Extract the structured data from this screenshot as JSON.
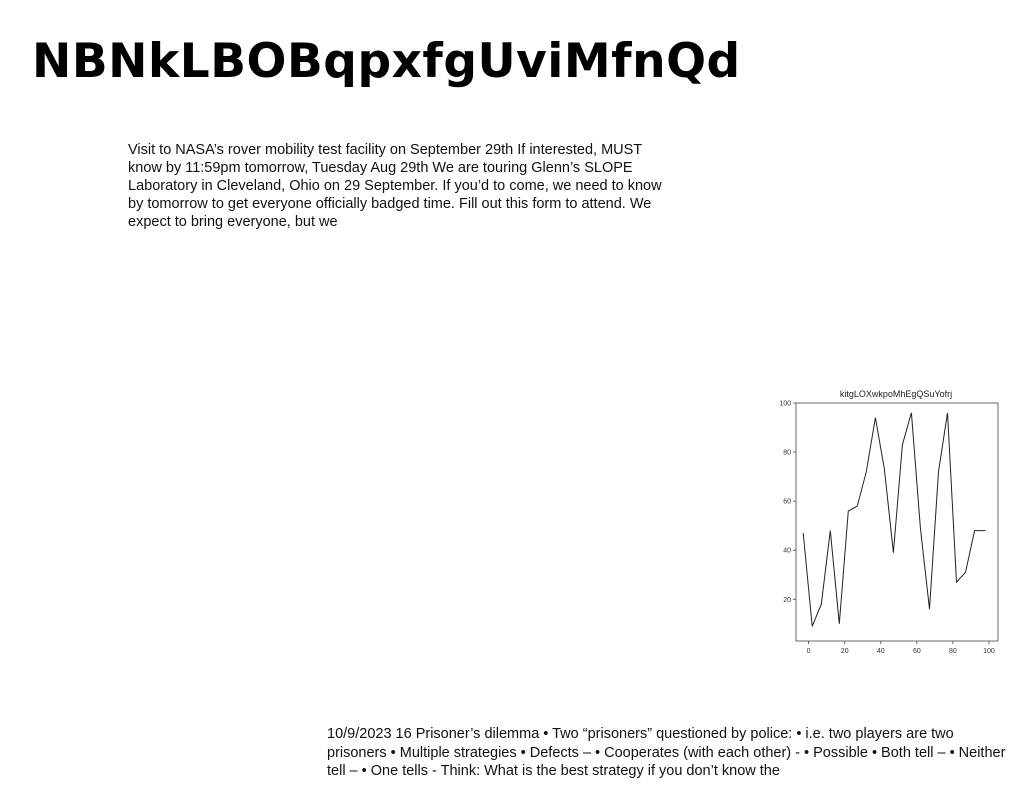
{
  "page": {
    "title": "NBNkLBOBqpxfgUviMfnQd",
    "paragraph": "Visit to NASA’s rover mobility test facility on September 29th If interested, MUST know by 11:59pm tomorrow, Tuesday Aug 29th We are touring Glenn’s SLOPE Laboratory in Cleveland, Ohio on 29 September. If you’d to come, we need to know by tomorrow to get everyone officially badged time. Fill out this form to attend. We expect to bring everyone, but we",
    "footer": "10/9/2023 16 Prisoner’s dilemma • Two “prisoners” questioned by police: • i.e. two players are two prisoners • Multiple strategies • Defects – • Cooperates (with each other) - • Possible • Both tell – • Neither tell – • One tells - Think: What is the best strategy if you don’t know the"
  },
  "chart_data": {
    "type": "line",
    "title": "kitgLOXwkpoMhEgQSuYofrj",
    "xlabel": "",
    "ylabel": "",
    "x": [
      -3,
      2,
      7,
      12,
      17,
      22,
      27,
      32,
      37,
      42,
      47,
      52,
      57,
      62,
      67,
      72,
      77,
      82,
      87,
      92,
      98
    ],
    "series": [
      {
        "values": [
          47,
          9,
          18,
          48,
          10,
          56,
          58,
          72,
          94,
          73,
          39,
          83,
          96,
          49,
          16,
          72,
          96,
          27,
          31,
          48,
          48
        ]
      }
    ],
    "xlim": [
      -7,
      105
    ],
    "ylim": [
      3,
      100
    ],
    "xticks": [
      0,
      20,
      40,
      60,
      80,
      100
    ],
    "yticks": [
      20,
      40,
      60,
      80,
      100
    ],
    "grid": false,
    "line_color": "#222222"
  }
}
